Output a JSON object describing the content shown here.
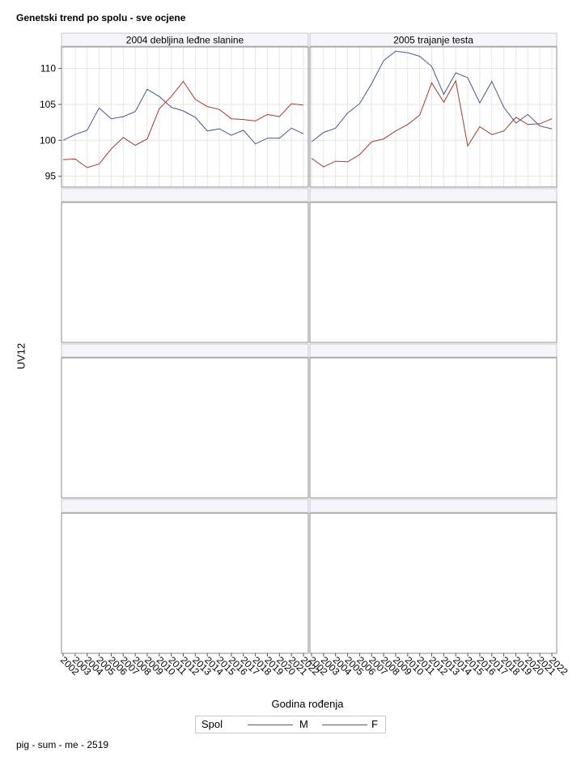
{
  "title": "Genetski trend po spolu - sve ocjene",
  "footer": "pig - sum - me - 2519",
  "chart_data": {
    "type": "line",
    "xlabel": "Godina rođenja",
    "ylabel": "UV12",
    "ylim": [
      93.5,
      113
    ],
    "yticks": [
      95,
      100,
      105,
      110
    ],
    "x": [
      2002,
      2003,
      2004,
      2005,
      2006,
      2007,
      2008,
      2009,
      2010,
      2011,
      2012,
      2013,
      2014,
      2015,
      2016,
      2017,
      2018,
      2019,
      2020,
      2021,
      2022
    ],
    "xtick_labels": [
      "2002",
      "2003",
      "2004",
      "2005",
      "2006",
      "2007",
      "2008",
      "2009",
      "2010",
      "2011",
      "2012",
      "2013",
      "2014",
      "2015",
      "2016",
      "2017",
      "2018",
      "2019",
      "2020",
      "2021",
      "2022"
    ],
    "grid": true,
    "legend": {
      "title": "Spol",
      "placement": "bottom"
    },
    "colors": {
      "M": "#445694",
      "F": "#a23a2e"
    },
    "panels": [
      {
        "label": "2004 debljina leđne slanine",
        "series": [
          {
            "name": "M",
            "values": [
              100.0,
              100.8,
              101.4,
              104.5,
              103.0,
              103.3,
              104.0,
              107.1,
              106.1,
              104.6,
              104.1,
              103.2,
              101.3,
              101.6,
              100.7,
              101.4,
              99.5,
              100.3,
              100.3,
              101.7,
              100.9
            ]
          },
          {
            "name": "F",
            "values": [
              97.3,
              97.4,
              96.2,
              96.7,
              98.8,
              100.4,
              99.3,
              100.2,
              104.4,
              106.1,
              108.2,
              105.7,
              104.7,
              104.3,
              103.0,
              102.9,
              102.7,
              103.6,
              103.3,
              105.1,
              104.9
            ]
          }
        ]
      },
      {
        "label": "2005 trajanje testa",
        "series": [
          {
            "name": "M",
            "values": [
              99.8,
              101.1,
              101.7,
              103.8,
              105.1,
              107.9,
              111.1,
              112.4,
              112.2,
              111.7,
              110.3,
              106.4,
              109.4,
              108.7,
              105.2,
              108.2,
              104.6,
              102.4,
              103.6,
              102.0,
              101.6
            ]
          },
          {
            "name": "F",
            "values": [
              97.5,
              96.3,
              97.1,
              97.0,
              98.0,
              99.8,
              100.2,
              101.3,
              102.2,
              103.5,
              108.0,
              105.3,
              108.3,
              99.2,
              101.9,
              100.8,
              101.3,
              103.2,
              102.2,
              102.3,
              103.0
            ]
          }
        ]
      },
      {
        "label": "",
        "series": []
      },
      {
        "label": "",
        "series": []
      },
      {
        "label": "",
        "series": []
      },
      {
        "label": "",
        "series": []
      },
      {
        "label": "",
        "series": []
      },
      {
        "label": "",
        "series": []
      }
    ]
  }
}
